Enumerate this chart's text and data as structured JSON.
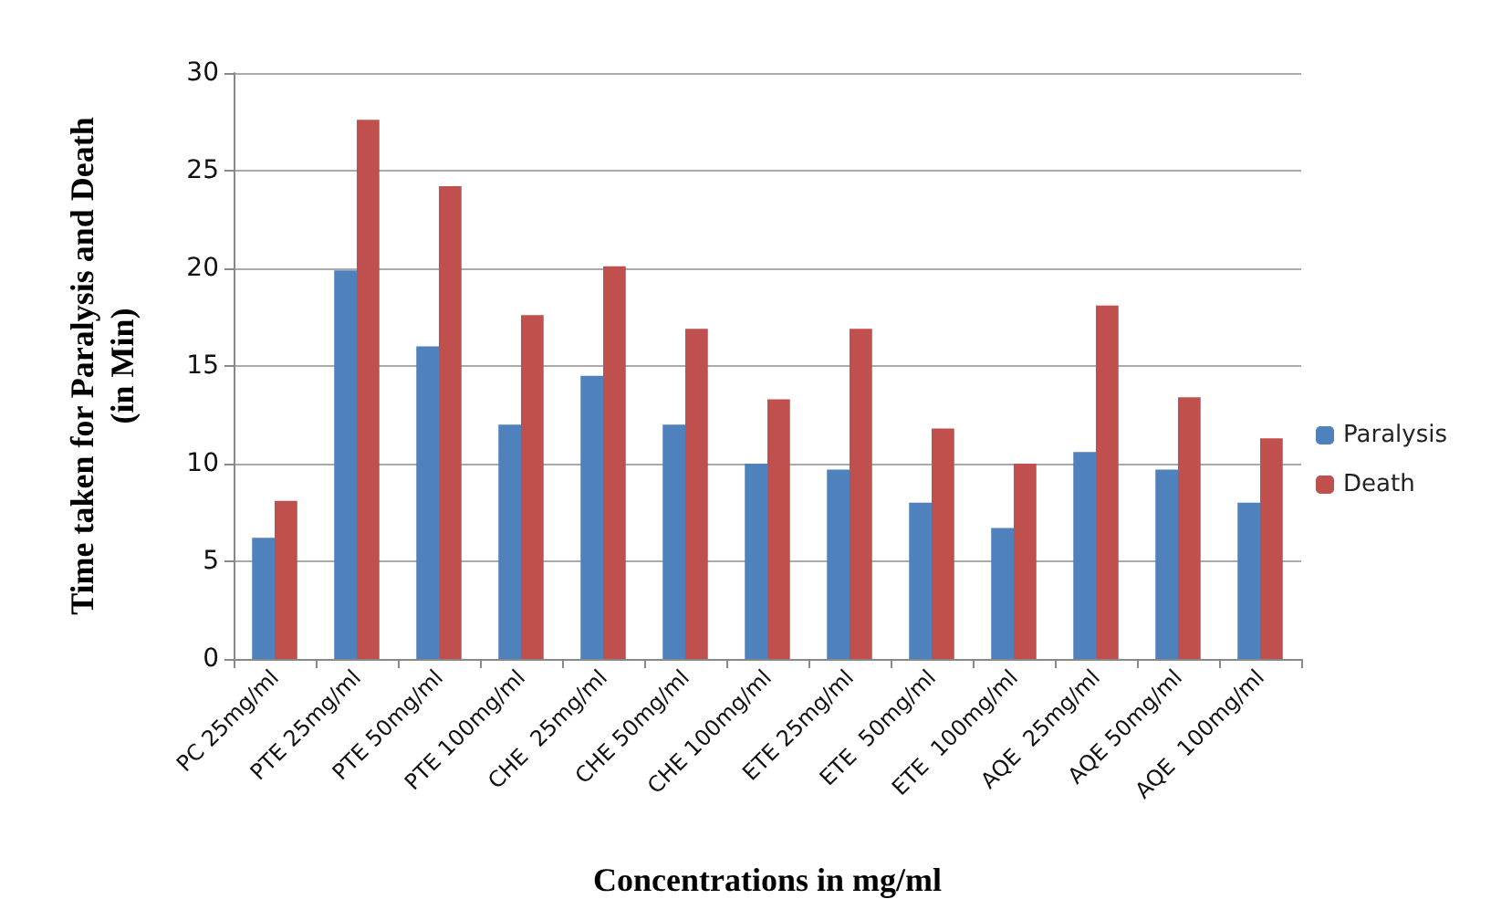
{
  "chart_data": {
    "type": "bar",
    "xlabel": "Concentrations in mg/ml",
    "ylabel": "Time taken for Paralysis and Death\n(in Min)",
    "categories": [
      "PC 25mg/ml",
      "PTE 25mg/ml",
      "PTE 50mg/ml",
      "PTE 100mg/ml",
      "CHE  25mg/ml",
      "CHE 50mg/ml",
      "CHE 100mg/ml",
      "ETE 25mg/ml",
      "ETE  50mg/ml",
      "ETE  100mg/ml",
      "AQE  25mg/ml",
      "AQE 50mg/ml",
      "AQE  100mg/ml"
    ],
    "series": [
      {
        "name": "Paralysis",
        "color": "#4f81bd",
        "values": [
          6.2,
          19.9,
          16,
          12,
          14.5,
          12,
          10,
          9.7,
          8,
          6.7,
          10.6,
          9.7,
          8
        ]
      },
      {
        "name": "Death",
        "color": "#c0504d",
        "values": [
          8.1,
          27.6,
          24.2,
          17.6,
          20.1,
          16.9,
          13.3,
          16.9,
          11.8,
          10,
          18.1,
          13.4,
          11.3
        ]
      }
    ],
    "ylim": [
      0,
      30
    ],
    "yticks": [
      0,
      5,
      10,
      15,
      20,
      25,
      30
    ],
    "grid": "y",
    "legend": "right"
  }
}
